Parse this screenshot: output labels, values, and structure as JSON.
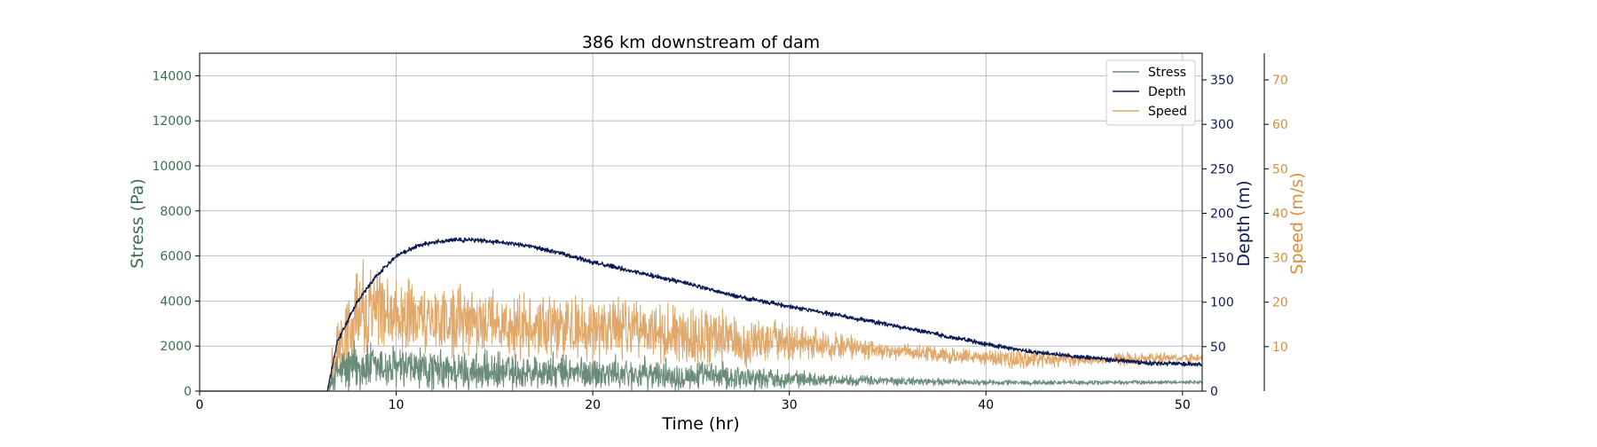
{
  "chart_data": {
    "type": "line",
    "title": "386 km downstream of dam",
    "xlabel": "Time (hr)",
    "xlim": [
      0,
      51
    ],
    "xticks": [
      0,
      10,
      20,
      30,
      40,
      50
    ],
    "grid": true,
    "legend_position": "top-right",
    "axes": {
      "left": {
        "label": "Stress (Pa)",
        "color": "#3d6e50",
        "ylim": [
          0,
          15000
        ],
        "ticks": [
          0,
          2000,
          4000,
          6000,
          8000,
          10000,
          12000,
          14000
        ]
      },
      "right1": {
        "label": "Depth (m)",
        "color": "#0b1a55",
        "ylim": [
          0,
          380
        ],
        "ticks": [
          0,
          50,
          100,
          150,
          200,
          250,
          300,
          350
        ]
      },
      "right2": {
        "label": "Speed (m/s)",
        "color": "#d98f3e",
        "ylim": [
          0,
          76
        ],
        "ticks": [
          10,
          20,
          30,
          40,
          50,
          60,
          70
        ]
      }
    },
    "series": [
      {
        "name": "Stress",
        "axis": "left",
        "color": "#6a8c78",
        "noisy": true,
        "noise_amplitude": [
          [
            6.5,
            300
          ],
          [
            7.5,
            1500
          ],
          [
            9,
            1300
          ],
          [
            12,
            1100
          ],
          [
            20,
            900
          ],
          [
            27,
            700
          ],
          [
            32,
            300
          ],
          [
            40,
            150
          ],
          [
            51,
            100
          ]
        ],
        "x": [
          0,
          6.5,
          7,
          8,
          10,
          12,
          15,
          20,
          25,
          30,
          35,
          40,
          45,
          51
        ],
        "y": [
          0,
          0,
          900,
          1100,
          1000,
          900,
          850,
          800,
          700,
          550,
          450,
          380,
          380,
          400
        ]
      },
      {
        "name": "Depth",
        "axis": "right1",
        "color": "#0b1a55",
        "noisy": true,
        "noise_amplitude": [
          [
            6.5,
            3
          ],
          [
            51,
            3
          ]
        ],
        "x": [
          0,
          6.5,
          7,
          8,
          9,
          10,
          11,
          12,
          13,
          14,
          15,
          16,
          17,
          18,
          20,
          22,
          25,
          27,
          30,
          32,
          35,
          37,
          40,
          42,
          45,
          48,
          51
        ],
        "y": [
          0,
          0,
          55,
          100,
          130,
          152,
          163,
          168,
          170,
          170,
          168,
          166,
          162,
          157,
          145,
          135,
          120,
          108,
          95,
          87,
          75,
          66,
          53,
          45,
          38,
          32,
          30
        ]
      },
      {
        "name": "Speed",
        "axis": "right2",
        "color": "#e0a86a",
        "noisy": true,
        "noise_amplitude": [
          [
            6.5,
            3
          ],
          [
            7.5,
            14
          ],
          [
            9,
            12
          ],
          [
            12,
            9
          ],
          [
            20,
            9
          ],
          [
            27,
            8
          ],
          [
            30,
            5
          ],
          [
            35,
            2
          ],
          [
            40,
            2
          ],
          [
            42,
            3
          ],
          [
            46,
            1
          ],
          [
            47,
            2
          ],
          [
            51,
            1
          ]
        ],
        "x": [
          0,
          6.5,
          7,
          8,
          9,
          10,
          12,
          15,
          20,
          25,
          30,
          35,
          40,
          45,
          51
        ],
        "y": [
          0,
          0,
          10,
          17,
          19,
          17,
          16,
          15,
          14,
          12,
          11,
          9,
          7.5,
          7,
          7.5
        ]
      }
    ]
  }
}
